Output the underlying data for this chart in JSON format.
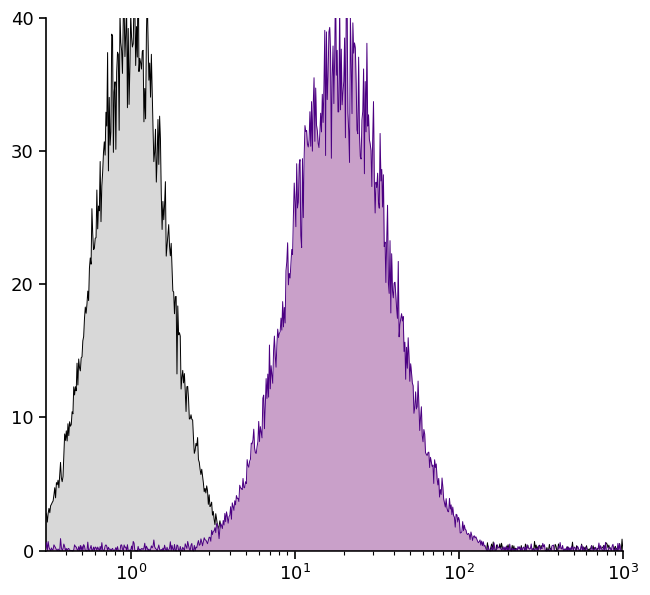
{
  "xlim_log": [
    -0.52,
    3.0
  ],
  "ylim": [
    0,
    40
  ],
  "yticks": [
    0,
    10,
    20,
    30,
    40
  ],
  "background_color": "#ffffff",
  "control_peak_log": 0.0,
  "control_peak_y": 39,
  "control_sigma_log": 0.22,
  "control_fill_color": "#d8d8d8",
  "control_line_color": "#000000",
  "sample_peak_log": 1.28,
  "sample_peak_y": 36.5,
  "sample_sigma_log": 0.3,
  "sample_fill_color": "#c9a0c9",
  "sample_line_color": "#4b0082",
  "noise_scale_ctrl": 3.0,
  "noise_scale_samp": 3.5,
  "seed_ctrl": 10,
  "seed_samp": 20
}
